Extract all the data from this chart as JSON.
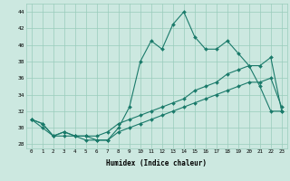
{
  "xlabel": "Humidex (Indice chaleur)",
  "background_color": "#cce8e0",
  "grid_color": "#99ccbb",
  "line_color": "#1a7a6a",
  "xlim": [
    -0.5,
    23.5
  ],
  "ylim": [
    27.5,
    45.0
  ],
  "xticks": [
    0,
    1,
    2,
    3,
    4,
    5,
    6,
    7,
    8,
    9,
    10,
    11,
    12,
    13,
    14,
    15,
    16,
    17,
    18,
    19,
    20,
    21,
    22,
    23
  ],
  "yticks": [
    28,
    30,
    32,
    34,
    36,
    38,
    40,
    42,
    44
  ],
  "line1_x": [
    0,
    1,
    2,
    3,
    4,
    5,
    6,
    7,
    8,
    9,
    10,
    11,
    12,
    13,
    14,
    15,
    16,
    17,
    18,
    19,
    20,
    21,
    22,
    23
  ],
  "line1_y": [
    31,
    30.5,
    29,
    29.5,
    29,
    29,
    28.5,
    28.5,
    30,
    32.5,
    38,
    40.5,
    39.5,
    42.5,
    44,
    41.0,
    39.5,
    39.5,
    40.5,
    39,
    37.5,
    35,
    32,
    32
  ],
  "line2_x": [
    0,
    1,
    2,
    3,
    4,
    5,
    6,
    7,
    8,
    9,
    10,
    11,
    12,
    13,
    14,
    15,
    16,
    17,
    18,
    19,
    20,
    21,
    22,
    23
  ],
  "line2_y": [
    31,
    30.5,
    29.0,
    29.5,
    29.0,
    29.0,
    29.0,
    29.5,
    30.5,
    31.0,
    31.5,
    32.0,
    32.5,
    33.0,
    33.5,
    34.5,
    35.0,
    35.5,
    36.5,
    37.0,
    37.5,
    37.5,
    38.5,
    32
  ],
  "line3_x": [
    0,
    1,
    2,
    3,
    4,
    5,
    6,
    7,
    8,
    9,
    10,
    11,
    12,
    13,
    14,
    15,
    16,
    17,
    18,
    19,
    20,
    21,
    22,
    23
  ],
  "line3_y": [
    31,
    30.0,
    29.0,
    29.0,
    29.0,
    28.5,
    28.5,
    28.5,
    29.5,
    30.0,
    30.5,
    31.0,
    31.5,
    32.0,
    32.5,
    33.0,
    33.5,
    34.0,
    34.5,
    35.0,
    35.5,
    35.5,
    36.0,
    32.5
  ]
}
